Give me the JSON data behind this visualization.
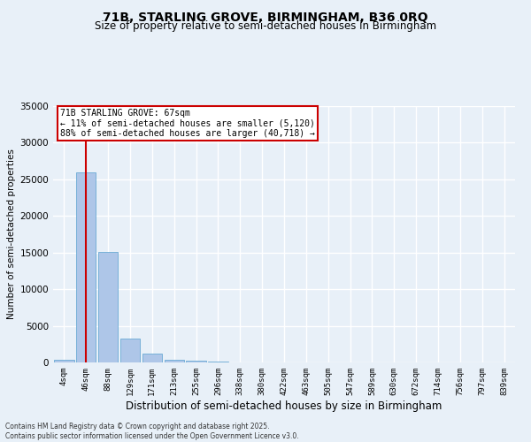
{
  "title_line1": "71B, STARLING GROVE, BIRMINGHAM, B36 0RQ",
  "title_line2": "Size of property relative to semi-detached houses in Birmingham",
  "xlabel": "Distribution of semi-detached houses by size in Birmingham",
  "ylabel": "Number of semi-detached properties",
  "categories": [
    "4sqm",
    "46sqm",
    "88sqm",
    "129sqm",
    "171sqm",
    "213sqm",
    "255sqm",
    "296sqm",
    "338sqm",
    "380sqm",
    "422sqm",
    "463sqm",
    "505sqm",
    "547sqm",
    "589sqm",
    "630sqm",
    "672sqm",
    "714sqm",
    "756sqm",
    "797sqm",
    "839sqm"
  ],
  "values": [
    350,
    26000,
    15100,
    3200,
    1200,
    400,
    200,
    100,
    0,
    0,
    0,
    0,
    0,
    0,
    0,
    0,
    0,
    0,
    0,
    0,
    0
  ],
  "bar_color": "#aec6e8",
  "bar_edge_color": "#6aaad4",
  "annotation_title": "71B STARLING GROVE: 67sqm",
  "annotation_line1": "← 11% of semi-detached houses are smaller (5,120)",
  "annotation_line2": "88% of semi-detached houses are larger (40,718) →",
  "annotation_box_color": "#ffffff",
  "annotation_box_edge": "#cc0000",
  "vline_color": "#cc0000",
  "vline_x": 1,
  "ylim": [
    0,
    35000
  ],
  "yticks": [
    0,
    5000,
    10000,
    15000,
    20000,
    25000,
    30000,
    35000
  ],
  "background_color": "#e8f0f8",
  "grid_color": "#ffffff",
  "footer_line1": "Contains HM Land Registry data © Crown copyright and database right 2025.",
  "footer_line2": "Contains public sector information licensed under the Open Government Licence v3.0."
}
